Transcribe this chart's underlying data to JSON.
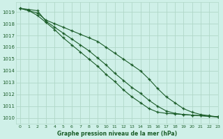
{
  "title": "Graphe pression niveau de la mer (hPa)",
  "bg_color": "#cff0e8",
  "grid_color": "#b0d8c8",
  "line_color": "#1a5c28",
  "xlim": [
    -0.5,
    23
  ],
  "ylim": [
    1009.5,
    1019.8
  ],
  "yticks": [
    1010,
    1011,
    1012,
    1013,
    1014,
    1015,
    1016,
    1017,
    1018,
    1019
  ],
  "xticks": [
    0,
    1,
    2,
    3,
    4,
    5,
    6,
    7,
    8,
    9,
    10,
    11,
    12,
    13,
    14,
    15,
    16,
    17,
    18,
    19,
    20,
    21,
    22,
    23
  ],
  "series": [
    [
      1019.3,
      1019.1,
      1018.9,
      1018.3,
      1018.0,
      1017.7,
      1017.4,
      1017.1,
      1016.8,
      1016.5,
      1016.0,
      1015.5,
      1015.0,
      1014.5,
      1014.0,
      1013.3,
      1012.5,
      1011.8,
      1011.3,
      1010.8,
      1010.5,
      1010.3,
      1010.2,
      1010.1
    ],
    [
      1019.3,
      1019.2,
      1019.1,
      1018.2,
      1017.7,
      1017.2,
      1016.7,
      1016.2,
      1015.7,
      1015.1,
      1014.5,
      1013.8,
      1013.2,
      1012.6,
      1012.1,
      1011.5,
      1011.0,
      1010.6,
      1010.4,
      1010.3,
      1010.25,
      1010.2,
      1010.15,
      1010.1
    ],
    [
      1019.3,
      1019.1,
      1018.7,
      1018.1,
      1017.5,
      1016.8,
      1016.2,
      1015.6,
      1015.0,
      1014.4,
      1013.7,
      1013.1,
      1012.4,
      1011.8,
      1011.3,
      1010.8,
      1010.5,
      1010.4,
      1010.35,
      1010.3,
      1010.25,
      1010.2,
      1010.15,
      1010.1
    ]
  ]
}
